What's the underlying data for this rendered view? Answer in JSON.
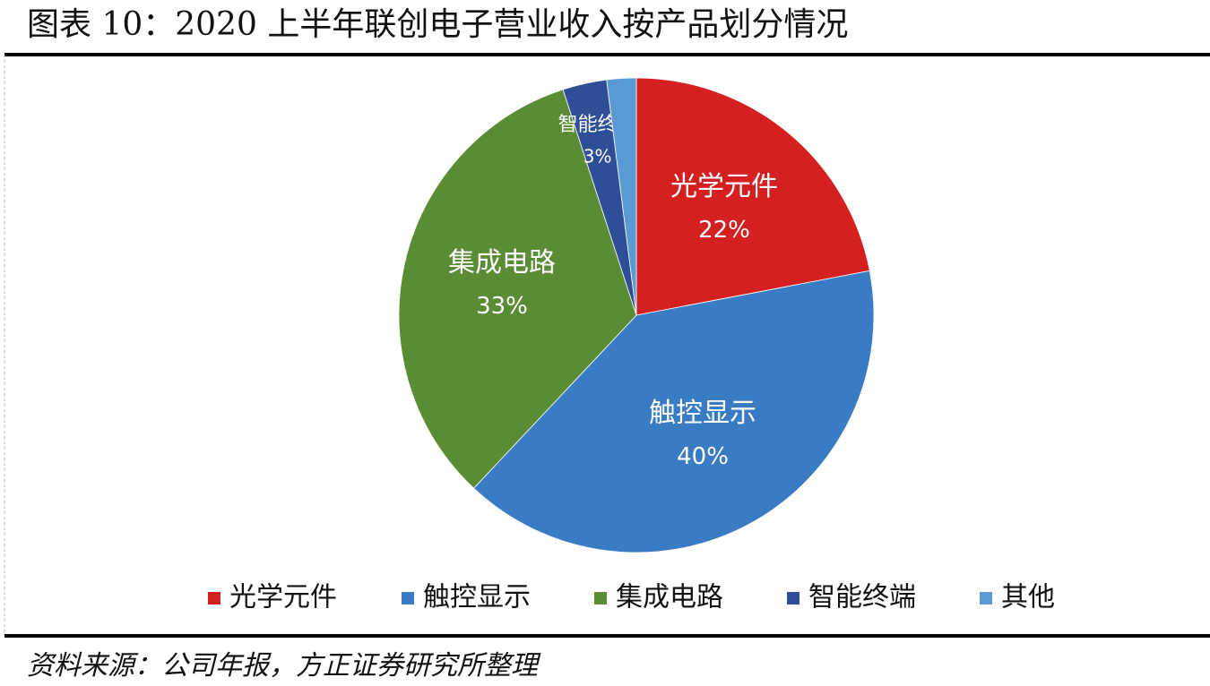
{
  "chart_data": {
    "type": "pie",
    "title": "图表 10：2020 上半年联创电子营业收入按产品划分情况",
    "categories": [
      "光学元件",
      "触控显示",
      "集成电路",
      "智能终端",
      "其他"
    ],
    "values": [
      22,
      40,
      33,
      3,
      2
    ],
    "value_labels": [
      "22%",
      "40%",
      "33%",
      "3%",
      null
    ],
    "colors": [
      "#d42020",
      "#3a7cc4",
      "#5a8b35",
      "#2e4f98",
      "#5b9bd5"
    ],
    "legend": "bottom",
    "source": "资料来源：公司年报，方正证券研究所整理"
  }
}
